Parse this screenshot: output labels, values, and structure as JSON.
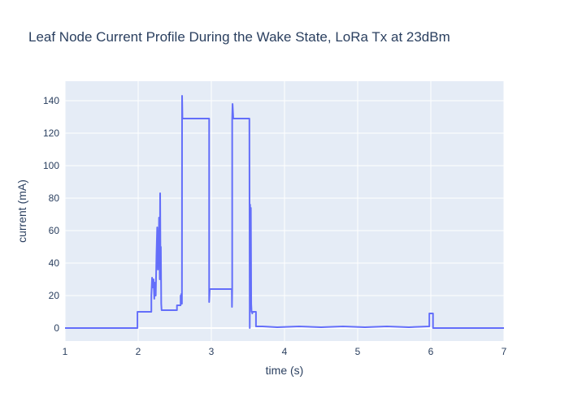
{
  "chart_data": {
    "type": "line",
    "title": "Leaf Node Current Profile During the Wake State, LoRa Tx at 23dBm",
    "xlabel": "time (s)",
    "ylabel": "current (mA)",
    "xlim": [
      1,
      7
    ],
    "ylim": [
      -8,
      152
    ],
    "x_ticks": [
      1,
      2,
      3,
      4,
      5,
      6,
      7
    ],
    "y_ticks": [
      0,
      20,
      40,
      60,
      80,
      100,
      120,
      140
    ],
    "grid": true,
    "colors": {
      "line": "#636efa",
      "plot_bg": "#e5ecf6",
      "grid": "#ffffff",
      "text": "#2a3f5f"
    },
    "series": [
      {
        "x": [
          1.0,
          1.99,
          1.99,
          2.18,
          2.18,
          2.19,
          2.2,
          2.21,
          2.22,
          2.23,
          2.24,
          2.25,
          2.26,
          2.27,
          2.275,
          2.28,
          2.285,
          2.29,
          2.295,
          2.3,
          2.305,
          2.31,
          2.315,
          2.32,
          2.325,
          2.33,
          2.335,
          2.34,
          2.35,
          2.35,
          2.53,
          2.53,
          2.58,
          2.58,
          2.59,
          2.59,
          2.598,
          2.6,
          2.605,
          2.608,
          2.62,
          2.96,
          2.97,
          2.97,
          2.978,
          2.98,
          3.28,
          3.282,
          3.285,
          3.285,
          3.29,
          3.3,
          3.52,
          3.525,
          3.53,
          3.535,
          3.54,
          3.545,
          3.55,
          3.555,
          3.56,
          3.565,
          3.57,
          3.58,
          3.6,
          3.61,
          3.61,
          3.7,
          3.9,
          4.2,
          4.5,
          4.8,
          5.1,
          5.4,
          5.7,
          5.98,
          5.98,
          6.03,
          6.03,
          7.0
        ],
        "y": [
          0,
          0,
          10,
          10,
          20,
          31,
          25,
          30,
          18,
          28,
          20,
          45,
          62,
          36,
          56,
          40,
          68,
          48,
          30,
          83,
          38,
          50,
          15,
          11,
          11,
          11,
          11,
          11,
          11,
          11,
          11,
          14,
          14,
          20,
          15,
          21,
          15,
          143,
          129,
          129,
          129,
          129,
          129,
          16,
          24,
          24,
          24,
          13,
          24,
          129,
          138,
          129,
          129,
          0,
          76,
          40,
          74,
          15,
          10,
          10,
          9,
          10,
          10,
          10,
          10,
          10,
          1,
          1,
          0.5,
          1,
          0.5,
          1,
          0.5,
          1,
          0.5,
          1,
          9,
          9,
          0,
          0
        ]
      }
    ]
  }
}
